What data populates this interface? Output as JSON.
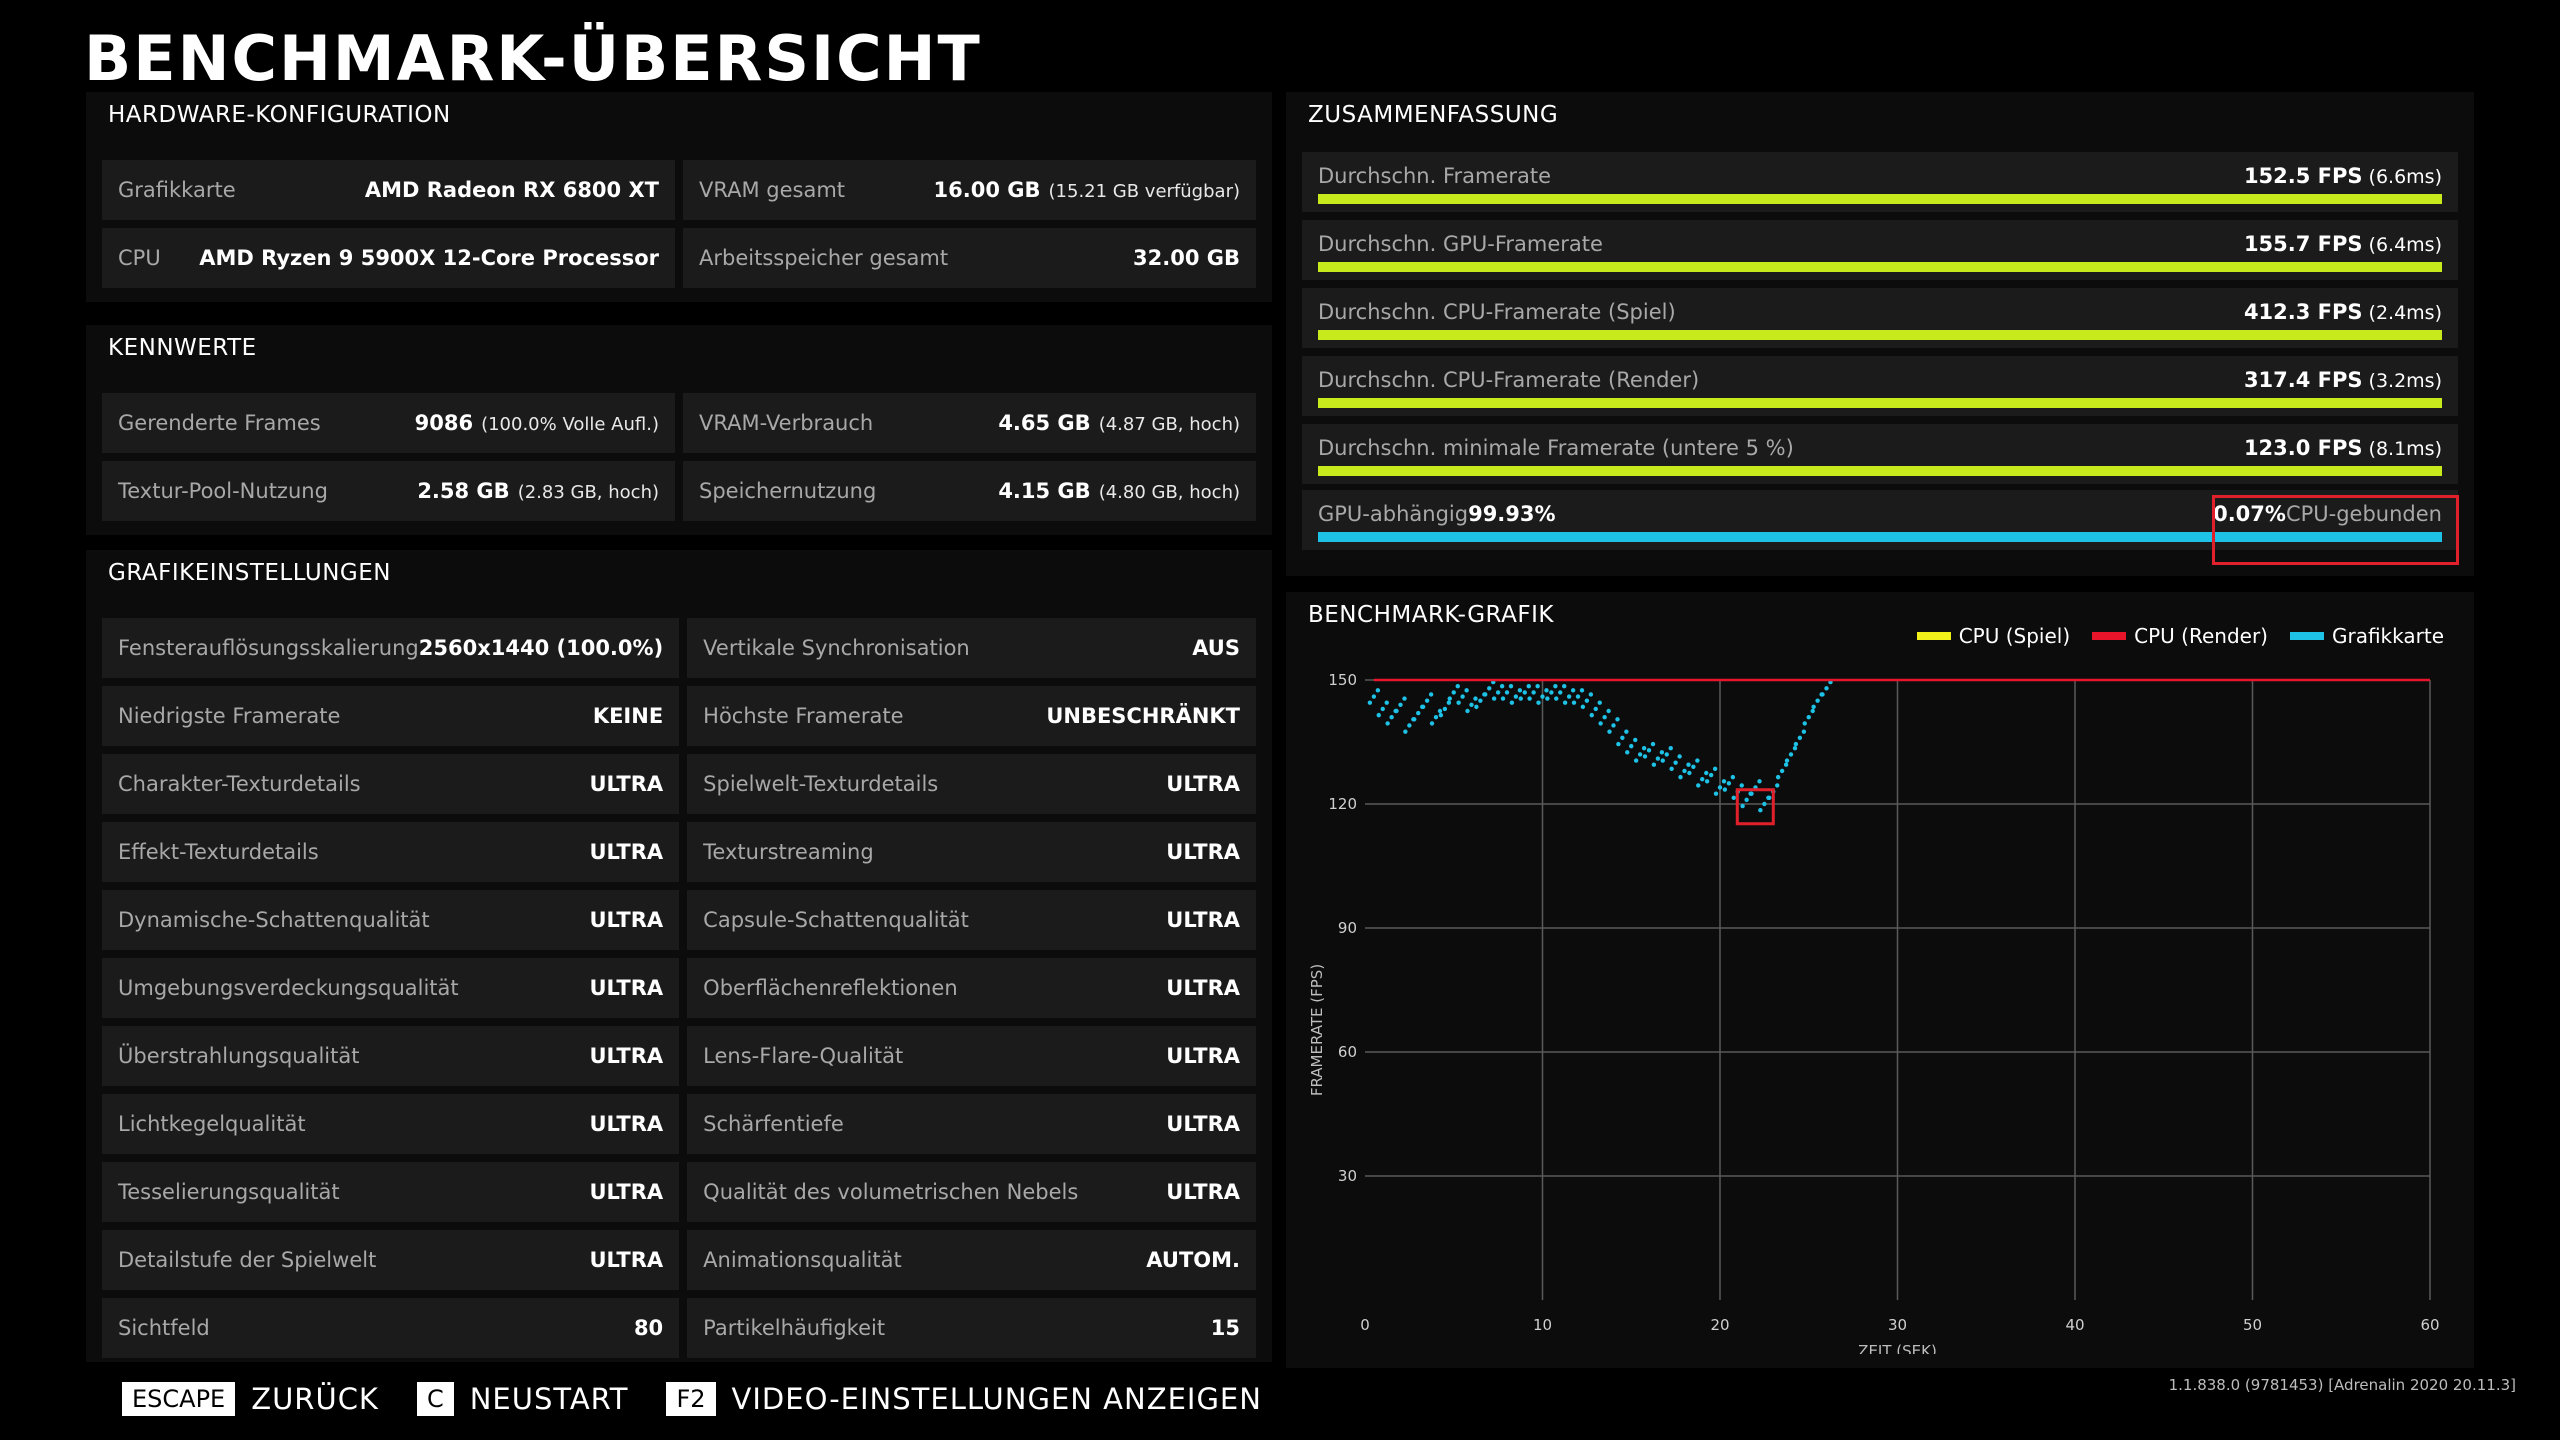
{
  "title": "BENCHMARK-ÜBERSICHT",
  "hardware": {
    "heading": "HARDWARE-KONFIGURATION",
    "cells": [
      {
        "label": "Grafikkarte",
        "value": "AMD Radeon RX 6800 XT",
        "sub": ""
      },
      {
        "label": "VRAM gesamt",
        "value": "16.00 GB",
        "sub": "(15.21 GB verfügbar)"
      },
      {
        "label": "CPU",
        "value": "AMD Ryzen 9 5900X 12-Core Processor",
        "sub": ""
      },
      {
        "label": "Arbeitsspeicher gesamt",
        "value": "32.00 GB",
        "sub": ""
      }
    ]
  },
  "kennwerte": {
    "heading": "KENNWERTE",
    "cells": [
      {
        "label": "Gerenderte Frames",
        "value": "9086",
        "sub": "(100.0% Volle Aufl.)"
      },
      {
        "label": "VRAM-Verbrauch",
        "value": "4.65 GB",
        "sub": "(4.87 GB, hoch)"
      },
      {
        "label": "Textur-Pool-Nutzung",
        "value": "2.58 GB",
        "sub": "(2.83 GB, hoch)"
      },
      {
        "label": "Speichernutzung",
        "value": "4.15 GB",
        "sub": "(4.80 GB, hoch)"
      }
    ]
  },
  "grafik": {
    "heading": "GRAFIKEINSTELLUNGEN",
    "cells": [
      {
        "label": "Fensterauflösungsskalierung",
        "value": "2560x1440 (100.0%)"
      },
      {
        "label": "Vertikale Synchronisation",
        "value": "AUS"
      },
      {
        "label": "Niedrigste Framerate",
        "value": "KEINE"
      },
      {
        "label": "Höchste Framerate",
        "value": "UNBESCHRÄNKT"
      },
      {
        "label": "Charakter-Texturdetails",
        "value": "ULTRA"
      },
      {
        "label": "Spielwelt-Texturdetails",
        "value": "ULTRA"
      },
      {
        "label": "Effekt-Texturdetails",
        "value": "ULTRA"
      },
      {
        "label": "Texturstreaming",
        "value": "ULTRA"
      },
      {
        "label": "Dynamische-Schattenqualität",
        "value": "ULTRA"
      },
      {
        "label": "Capsule-Schattenqualität",
        "value": "ULTRA"
      },
      {
        "label": "Umgebungsverdeckungsqualität",
        "value": "ULTRA"
      },
      {
        "label": "Oberflächenreflektionen",
        "value": "ULTRA"
      },
      {
        "label": "Überstrahlungsqualität",
        "value": "ULTRA"
      },
      {
        "label": "Lens-Flare-Qualität",
        "value": "ULTRA"
      },
      {
        "label": "Lichtkegelqualität",
        "value": "ULTRA"
      },
      {
        "label": "Schärfentiefe",
        "value": "ULTRA"
      },
      {
        "label": "Tesselierungsqualität",
        "value": "ULTRA"
      },
      {
        "label": "Qualität des volumetrischen Nebels",
        "value": "ULTRA"
      },
      {
        "label": "Detailstufe der Spielwelt",
        "value": "ULTRA"
      },
      {
        "label": "Animationsqualität",
        "value": "AUTOM."
      },
      {
        "label": "Sichtfeld",
        "value": "80"
      },
      {
        "label": "Partikelhäufigkeit",
        "value": "15"
      }
    ]
  },
  "summary": {
    "heading": "ZUSAMMENFASSUNG",
    "rows": [
      {
        "label": "Durchschn. Framerate",
        "value": "152.5 FPS",
        "sub": "(6.6ms)"
      },
      {
        "label": "Durchschn. GPU-Framerate",
        "value": "155.7 FPS",
        "sub": "(6.4ms)"
      },
      {
        "label": "Durchschn. CPU-Framerate (Spiel)",
        "value": "412.3 FPS",
        "sub": "(2.4ms)"
      },
      {
        "label": "Durchschn. CPU-Framerate (Render)",
        "value": "317.4 FPS",
        "sub": "(3.2ms)"
      },
      {
        "label": "Durchschn. minimale Framerate (untere 5 %)",
        "value": "123.0 FPS",
        "sub": "(8.1ms)"
      }
    ],
    "bound": {
      "gpu_label": "GPU-abhängig",
      "gpu_value": "99.93%",
      "cpu_value": "0.07%",
      "cpu_label": "CPU-gebunden",
      "gpu_fraction": 0.9993
    }
  },
  "graph": {
    "heading": "BENCHMARK-GRAFIK",
    "legend": [
      {
        "label": "CPU (Spiel)",
        "color": "#f2f21a"
      },
      {
        "label": "CPU (Render)",
        "color": "#e8142a"
      },
      {
        "label": "Grafikkarte",
        "color": "#1ec2e6"
      }
    ]
  },
  "chart_data": {
    "type": "scatter",
    "xlabel": "ZEIT (SEK)",
    "ylabel": "FRAMERATE (FPS)",
    "xlim": [
      0,
      60
    ],
    "ylim": [
      0,
      150
    ],
    "xticks": [
      0,
      10,
      20,
      30,
      40,
      50,
      60
    ],
    "yticks": [
      30,
      60,
      90,
      120,
      150
    ],
    "grid": true,
    "series": [
      {
        "name": "Grafikkarte",
        "color": "#1ec2e6",
        "x": [
          0.5,
          1,
          1.5,
          2,
          2.5,
          3,
          3.5,
          4,
          4.5,
          5,
          5.5,
          6,
          6.5,
          7,
          7.5,
          8,
          8.5,
          9,
          9.5,
          10,
          10.5,
          11,
          11.5,
          12,
          12.5,
          13,
          13.5,
          14,
          14.5,
          15,
          15.5,
          16,
          16.5,
          17,
          17.5,
          18,
          18.5,
          19,
          19.5,
          20,
          20.5,
          21,
          21.5,
          22,
          22.5,
          23,
          23.5,
          24,
          24.5,
          25,
          25.5,
          26
        ],
        "y": [
          146,
          143,
          141,
          144,
          139,
          142,
          145,
          141,
          143,
          147,
          146,
          144,
          145,
          148,
          147,
          147,
          146,
          147,
          147,
          146,
          147,
          147,
          146,
          146,
          145,
          143,
          141,
          139,
          136,
          134,
          132,
          133,
          131,
          132,
          130,
          128,
          129,
          126,
          127,
          124,
          125,
          123,
          121,
          124,
          120,
          123,
          128,
          132,
          136,
          141,
          145,
          148
        ]
      },
      {
        "name": "CPU (Render)",
        "color": "#e8142a",
        "x": [
          0.5,
          60
        ],
        "y": [
          150,
          150
        ]
      }
    ]
  },
  "footer": [
    {
      "key": "ESCAPE",
      "label": "ZURÜCK"
    },
    {
      "key": "C",
      "label": "NEUSTART"
    },
    {
      "key": "F2",
      "label": "VIDEO-EINSTELLUNGEN ANZEIGEN"
    }
  ],
  "version": "1.1.838.0 (9781453) [Adrenalin 2020 20.11.3]"
}
